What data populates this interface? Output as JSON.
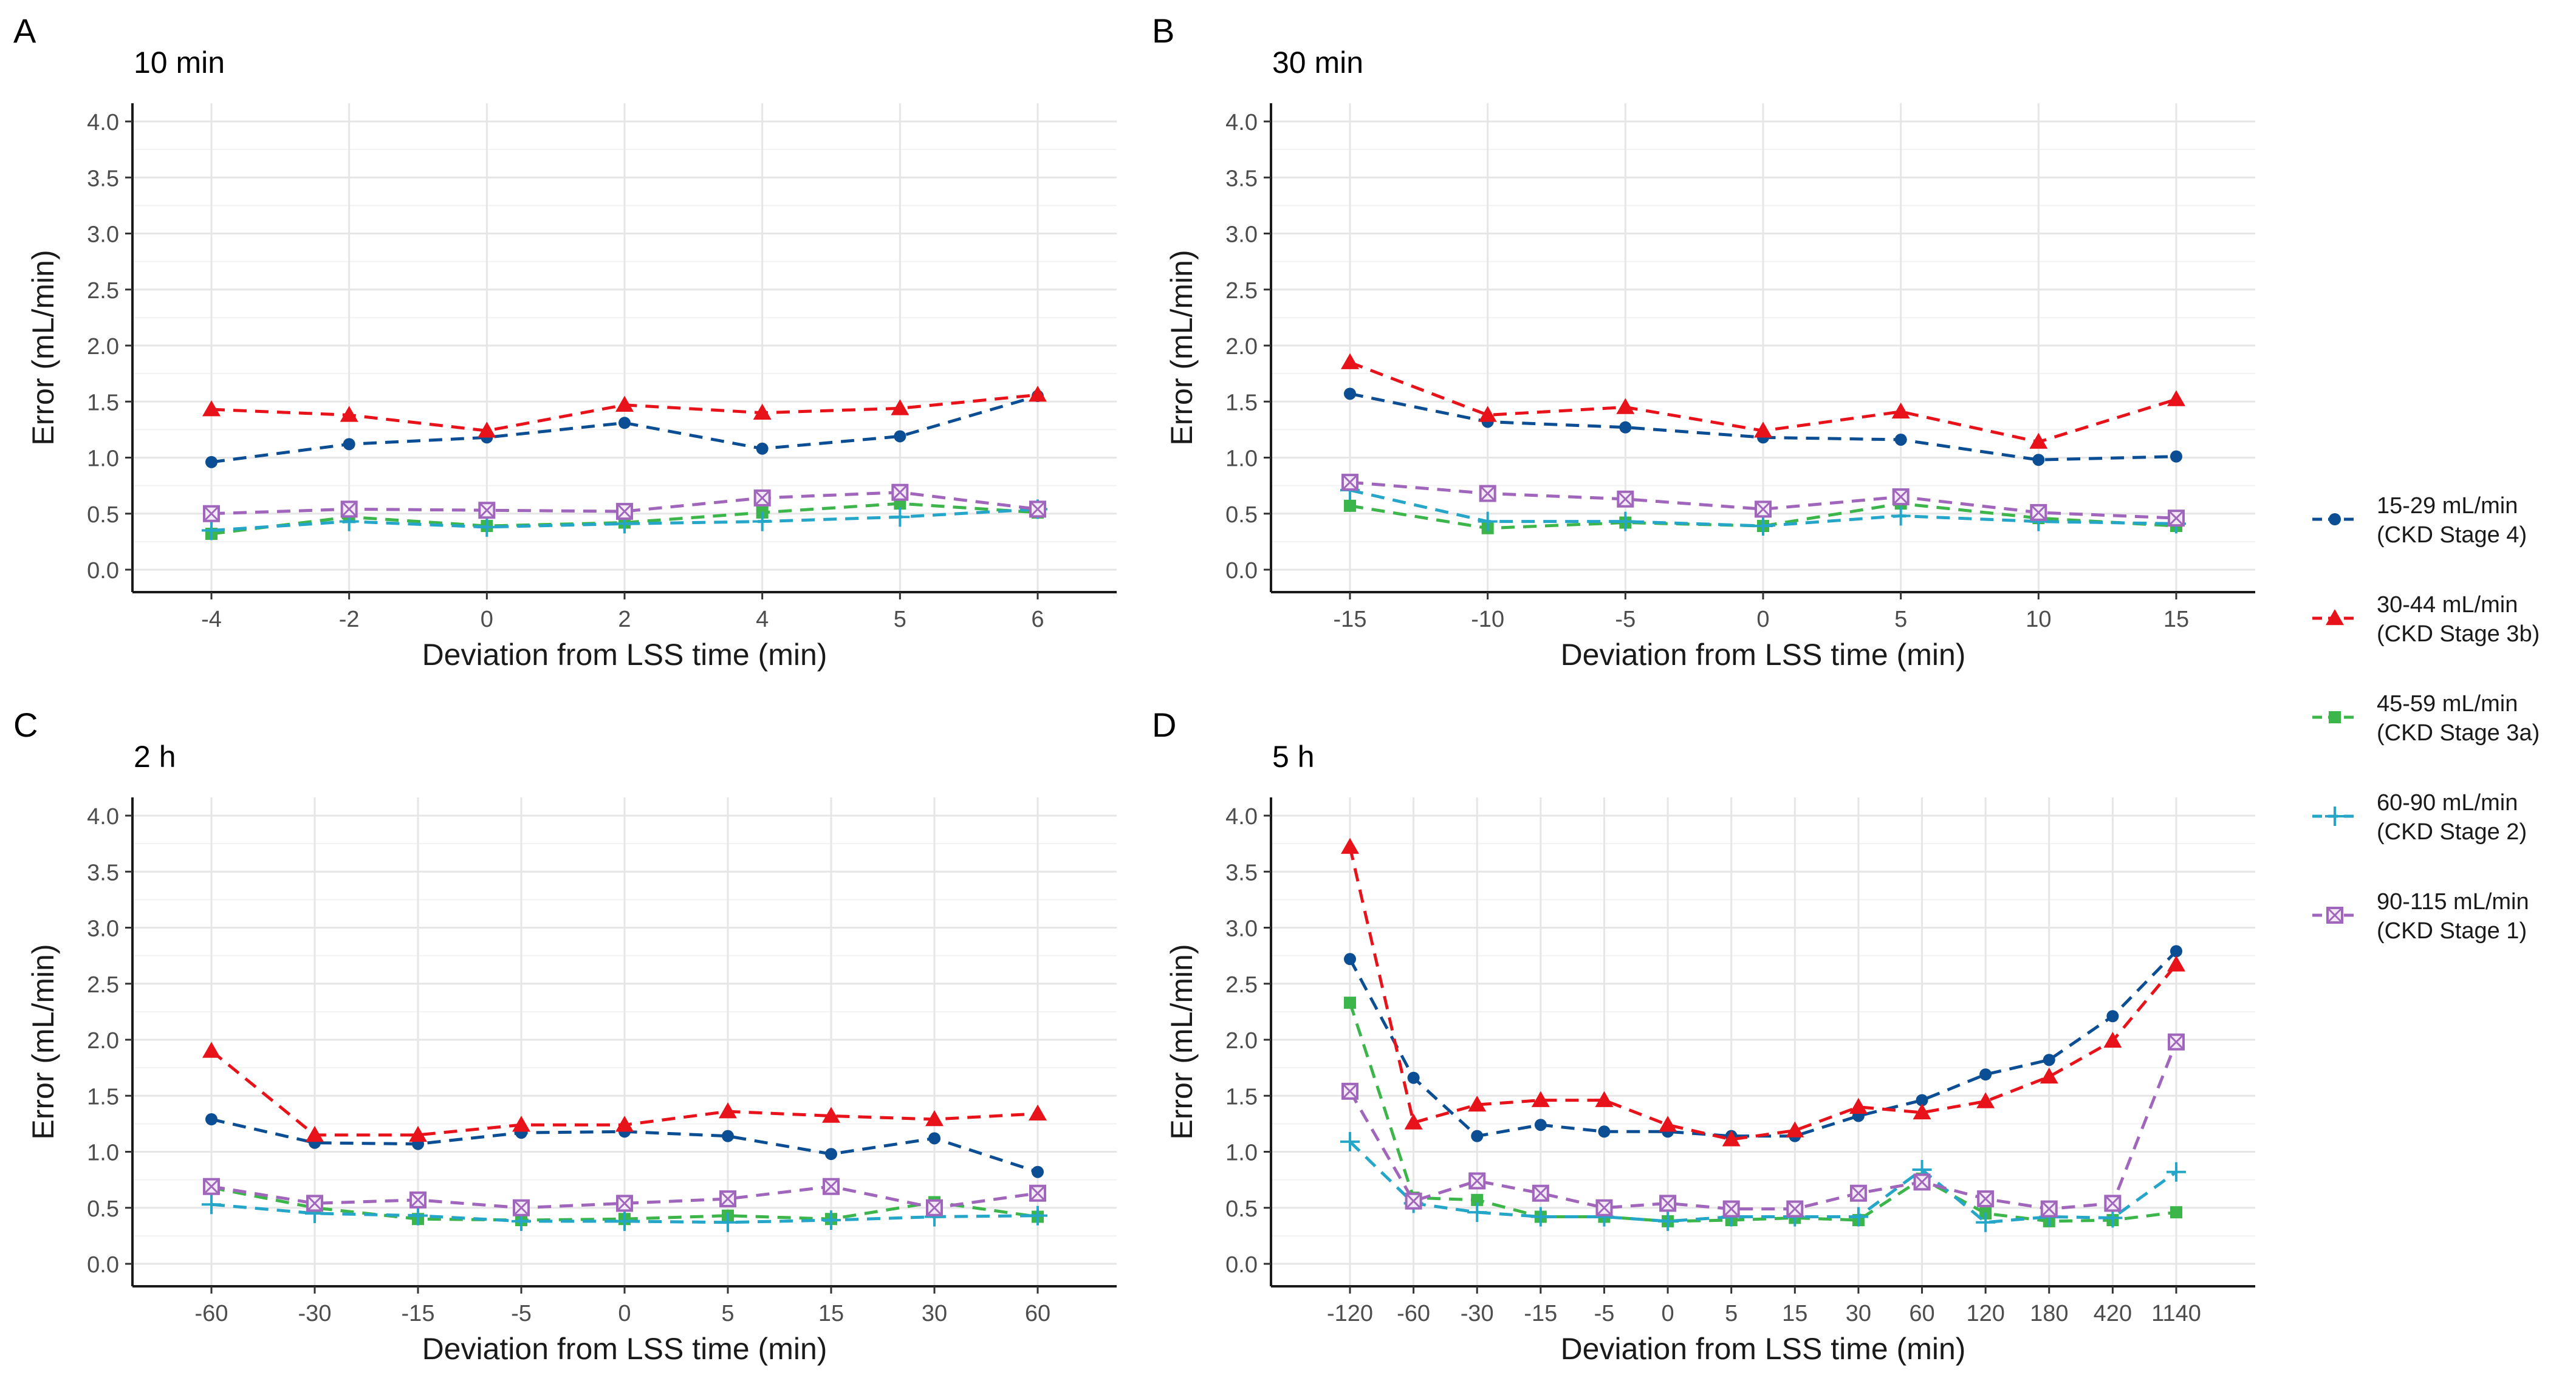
{
  "series_meta": [
    {
      "key": "s1",
      "name": "15-29 mL/min",
      "stage": "(CKD Stage 4)",
      "color": "#0c4e94",
      "marker": "circle"
    },
    {
      "key": "s2",
      "name": "30-44 mL/min",
      "stage": "(CKD Stage 3b)",
      "color": "#e8131a",
      "marker": "triangle"
    },
    {
      "key": "s3",
      "name": "45-59 mL/min",
      "stage": "(CKD Stage 3a)",
      "color": "#3cb54a",
      "marker": "square"
    },
    {
      "key": "s4",
      "name": "60-90 mL/min",
      "stage": "(CKD Stage 2)",
      "color": "#25a6c9",
      "marker": "plus"
    },
    {
      "key": "s5",
      "name": "90-115 mL/min",
      "stage": "(CKD Stage 1)",
      "color": "#a066bb",
      "marker": "squarecross"
    }
  ],
  "chart_data": [
    {
      "type": "line",
      "panel": "A",
      "title": "10 min",
      "xlabel": "Deviation from LSS time (min)",
      "ylabel": "Error (mL/min)",
      "ylim": [
        0,
        4
      ],
      "yticks": [
        "0.0",
        "0.5",
        "1.0",
        "1.5",
        "2.0",
        "2.5",
        "3.0",
        "3.5",
        "4.0"
      ],
      "categories": [
        "-4",
        "-2",
        "0",
        "2",
        "4",
        "5",
        "6"
      ],
      "series": [
        {
          "name": "15-29 mL/min",
          "values": [
            0.96,
            1.12,
            1.18,
            1.31,
            1.08,
            1.19,
            1.55
          ]
        },
        {
          "name": "30-44 mL/min",
          "values": [
            1.43,
            1.38,
            1.24,
            1.47,
            1.4,
            1.44,
            1.56
          ]
        },
        {
          "name": "45-59 mL/min",
          "values": [
            0.32,
            0.47,
            0.39,
            0.42,
            0.51,
            0.59,
            0.51
          ]
        },
        {
          "name": "60-90 mL/min",
          "values": [
            0.35,
            0.43,
            0.38,
            0.41,
            0.43,
            0.47,
            0.54
          ]
        },
        {
          "name": "90-115 mL/min",
          "values": [
            0.5,
            0.54,
            0.53,
            0.52,
            0.64,
            0.69,
            0.54
          ]
        }
      ]
    },
    {
      "type": "line",
      "panel": "B",
      "title": "30 min",
      "xlabel": "Deviation from LSS time (min)",
      "ylabel": "Error (mL/min)",
      "ylim": [
        0,
        4
      ],
      "yticks": [
        "0.0",
        "0.5",
        "1.0",
        "1.5",
        "2.0",
        "2.5",
        "3.0",
        "3.5",
        "4.0"
      ],
      "categories": [
        "-15",
        "-10",
        "-5",
        "0",
        "5",
        "10",
        "15"
      ],
      "series": [
        {
          "name": "15-29 mL/min",
          "values": [
            1.57,
            1.32,
            1.27,
            1.18,
            1.16,
            0.98,
            1.01
          ]
        },
        {
          "name": "30-44 mL/min",
          "values": [
            1.85,
            1.38,
            1.45,
            1.24,
            1.41,
            1.14,
            1.52
          ]
        },
        {
          "name": "45-59 mL/min",
          "values": [
            0.57,
            0.37,
            0.42,
            0.39,
            0.59,
            0.46,
            0.39
          ]
        },
        {
          "name": "60-90 mL/min",
          "values": [
            0.71,
            0.43,
            0.43,
            0.39,
            0.48,
            0.43,
            0.41
          ]
        },
        {
          "name": "90-115 mL/min",
          "values": [
            0.78,
            0.68,
            0.63,
            0.54,
            0.65,
            0.51,
            0.46
          ]
        }
      ]
    },
    {
      "type": "line",
      "panel": "C",
      "title": "2 h",
      "xlabel": "Deviation from LSS time (min)",
      "ylabel": "Error (mL/min)",
      "ylim": [
        0,
        4
      ],
      "yticks": [
        "0.0",
        "0.5",
        "1.0",
        "1.5",
        "2.0",
        "2.5",
        "3.0",
        "3.5",
        "4.0"
      ],
      "categories": [
        "-60",
        "-30",
        "-15",
        "-5",
        "0",
        "5",
        "15",
        "30",
        "60"
      ],
      "series": [
        {
          "name": "15-29 mL/min",
          "values": [
            1.29,
            1.08,
            1.07,
            1.17,
            1.18,
            1.14,
            0.98,
            1.12,
            0.82
          ]
        },
        {
          "name": "30-44 mL/min",
          "values": [
            1.9,
            1.15,
            1.15,
            1.24,
            1.24,
            1.36,
            1.32,
            1.29,
            1.34
          ]
        },
        {
          "name": "45-59 mL/min",
          "values": [
            0.68,
            0.5,
            0.4,
            0.39,
            0.4,
            0.43,
            0.4,
            0.55,
            0.42
          ]
        },
        {
          "name": "60-90 mL/min",
          "values": [
            0.53,
            0.45,
            0.43,
            0.38,
            0.38,
            0.37,
            0.39,
            0.42,
            0.43
          ]
        },
        {
          "name": "90-115 mL/min",
          "values": [
            0.69,
            0.54,
            0.57,
            0.5,
            0.54,
            0.58,
            0.69,
            0.5,
            0.63
          ]
        }
      ]
    },
    {
      "type": "line",
      "panel": "D",
      "title": "5 h",
      "xlabel": "Deviation from LSS time (min)",
      "ylabel": "Error (mL/min)",
      "ylim": [
        0,
        4
      ],
      "yticks": [
        "0.0",
        "0.5",
        "1.0",
        "1.5",
        "2.0",
        "2.5",
        "3.0",
        "3.5",
        "4.0"
      ],
      "categories": [
        "-120",
        "-60",
        "-30",
        "-15",
        "-5",
        "0",
        "5",
        "15",
        "30",
        "60",
        "120",
        "180",
        "420",
        "1140"
      ],
      "series": [
        {
          "name": "15-29 mL/min",
          "values": [
            2.72,
            1.66,
            1.14,
            1.24,
            1.18,
            1.18,
            1.14,
            1.14,
            1.32,
            1.46,
            1.69,
            1.82,
            2.21,
            2.79
          ]
        },
        {
          "name": "30-44 mL/min",
          "values": [
            3.72,
            1.26,
            1.42,
            1.46,
            1.46,
            1.24,
            1.11,
            1.19,
            1.4,
            1.35,
            1.45,
            1.67,
            1.99,
            2.67
          ]
        },
        {
          "name": "45-59 mL/min",
          "values": [
            2.33,
            0.59,
            0.57,
            0.42,
            0.42,
            0.38,
            0.39,
            0.41,
            0.39,
            0.76,
            0.45,
            0.38,
            0.39,
            0.46
          ]
        },
        {
          "name": "60-90 mL/min",
          "values": [
            1.09,
            0.54,
            0.46,
            0.42,
            0.42,
            0.38,
            0.42,
            0.42,
            0.42,
            0.84,
            0.37,
            0.42,
            0.41,
            0.82
          ]
        },
        {
          "name": "90-115 mL/min",
          "values": [
            1.54,
            0.56,
            0.74,
            0.63,
            0.5,
            0.54,
            0.49,
            0.49,
            0.63,
            0.73,
            0.58,
            0.49,
            0.54,
            1.98
          ]
        }
      ]
    }
  ]
}
